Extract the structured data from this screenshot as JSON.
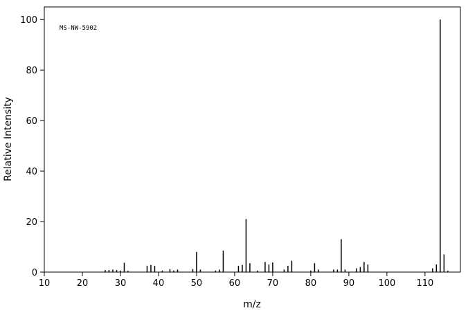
{
  "chart_data": {
    "type": "stick",
    "annotation": "MS-NW-5902",
    "x_label": "m/z",
    "y_label": "Relative Intensity",
    "x": [
      26,
      27,
      28,
      29,
      30,
      31,
      32,
      37,
      38,
      39,
      41,
      43,
      44,
      45,
      49,
      50,
      51,
      55,
      56,
      57,
      61,
      62,
      63,
      64,
      66,
      68,
      69,
      70,
      73,
      74,
      75,
      80,
      81,
      82,
      86,
      87,
      88,
      89,
      92,
      93,
      94,
      95,
      112,
      113,
      114,
      115,
      116
    ],
    "values": [
      0.8,
      0.8,
      1,
      0.8,
      0.6,
      3.7,
      0.5,
      2.5,
      2.8,
      2.5,
      0.6,
      1.2,
      0.6,
      1,
      1.2,
      8,
      1,
      0.6,
      1,
      8.5,
      2.5,
      2.8,
      21,
      3.5,
      0.6,
      4,
      3,
      3.8,
      1,
      2.5,
      4.5,
      0.6,
      3.5,
      1,
      1,
      1,
      13,
      1,
      1.5,
      2,
      4,
      3,
      1.5,
      3,
      100,
      7,
      0.5
    ],
    "color": "#000000",
    "xlim": [
      10,
      119.3
    ],
    "ylim": [
      0,
      105
    ],
    "xticks": [
      10,
      20,
      30,
      40,
      50,
      60,
      70,
      80,
      90,
      100,
      110
    ],
    "yticks": [
      0,
      20,
      40,
      60,
      80,
      100
    ]
  }
}
